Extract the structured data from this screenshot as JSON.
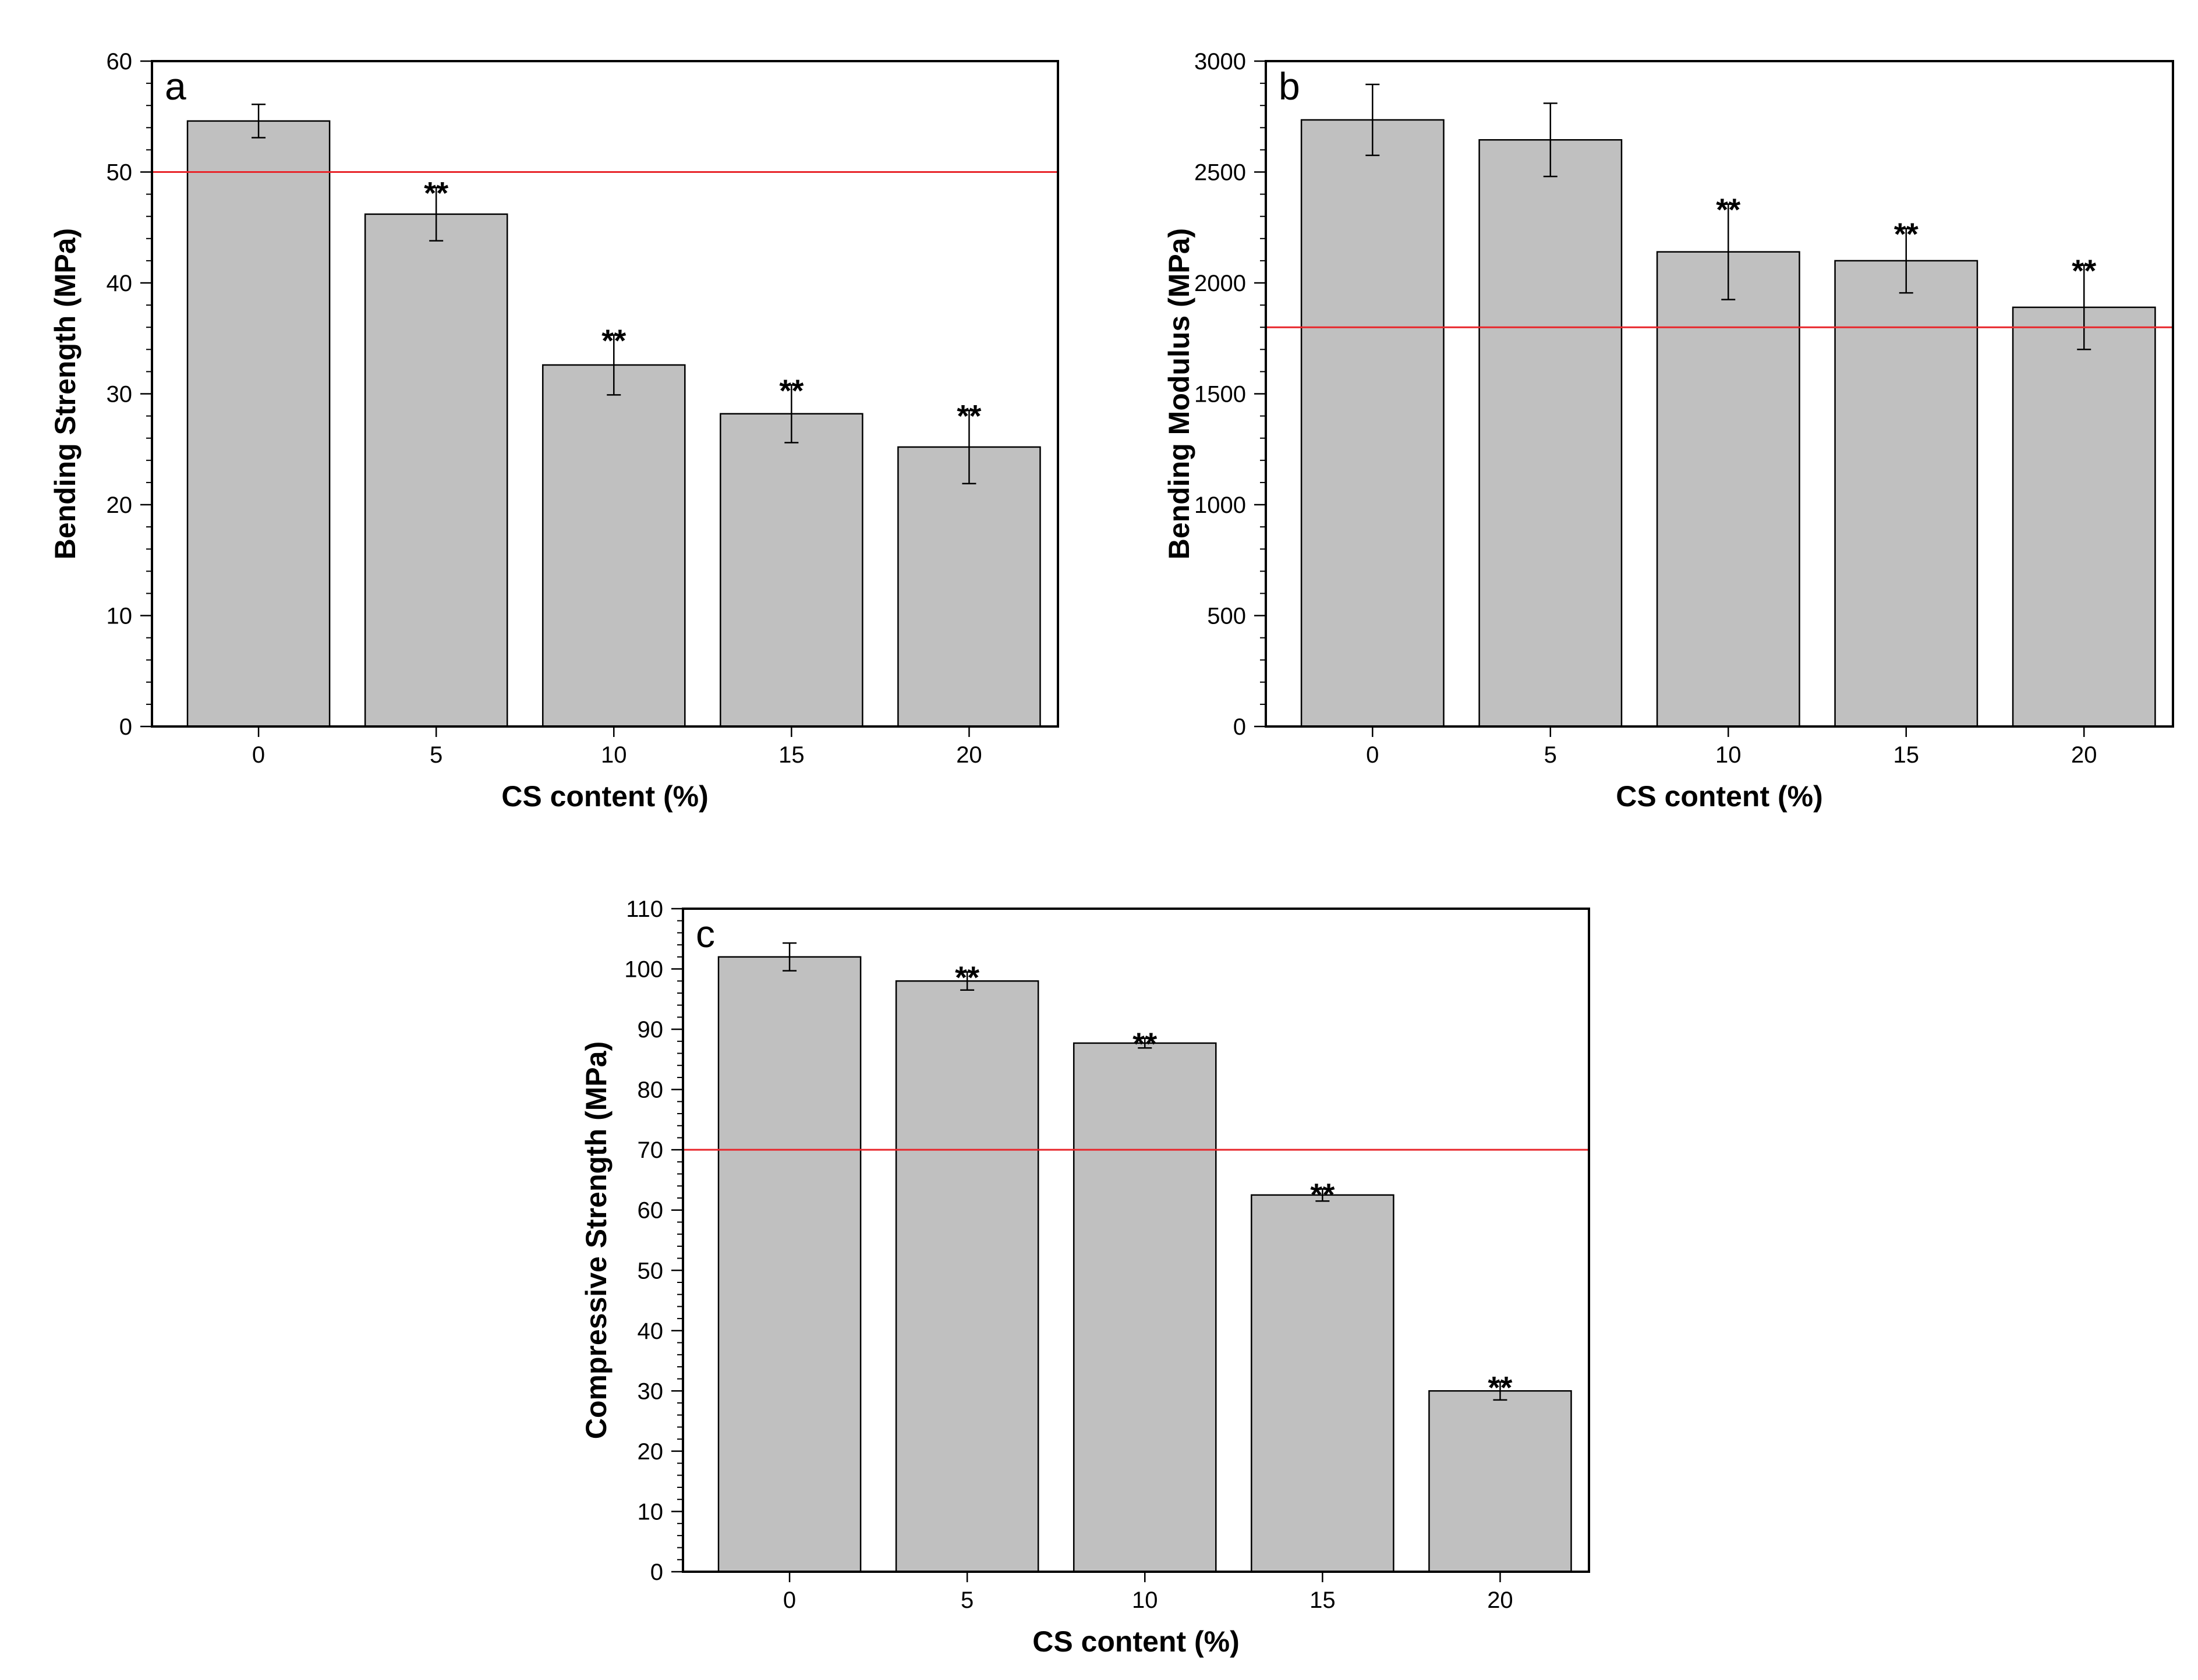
{
  "chart_data": [
    {
      "type": "bar",
      "panel_label": "a",
      "categories": [
        "0",
        "5",
        "10",
        "15",
        "20"
      ],
      "values": [
        54.6,
        46.2,
        32.6,
        28.2,
        25.2
      ],
      "errors": [
        1.5,
        2.4,
        2.7,
        2.6,
        3.3
      ],
      "significance": [
        "",
        "**",
        "**",
        "**",
        "**"
      ],
      "xlabel": "CS content (%)",
      "ylabel": "Bending Strength (MPa)",
      "ylim": [
        0,
        60
      ],
      "yticks": [
        0,
        10,
        20,
        30,
        40,
        50,
        60
      ],
      "reference_line": 50,
      "bar_color": "#c0c0c0",
      "reference_color": "#e8262b"
    },
    {
      "type": "bar",
      "panel_label": "b",
      "categories": [
        "0",
        "5",
        "10",
        "15",
        "20"
      ],
      "values": [
        2735,
        2645,
        2140,
        2100,
        1890
      ],
      "errors": [
        160,
        165,
        215,
        145,
        190
      ],
      "significance": [
        "",
        "",
        "**",
        "**",
        "**"
      ],
      "xlabel": "CS content (%)",
      "ylabel": "Bending Modulus (MPa)",
      "ylim": [
        0,
        3000
      ],
      "yticks": [
        0,
        500,
        1000,
        1500,
        2000,
        2500,
        3000
      ],
      "reference_line": 1800,
      "bar_color": "#c0c0c0",
      "reference_color": "#e8262b"
    },
    {
      "type": "bar",
      "panel_label": "c",
      "categories": [
        "0",
        "5",
        "10",
        "15",
        "20"
      ],
      "values": [
        102,
        98,
        87.7,
        62.5,
        30
      ],
      "errors": [
        2.3,
        1.5,
        0.8,
        1.0,
        1.5
      ],
      "significance": [
        "",
        "**",
        "**",
        "**",
        "**"
      ],
      "xlabel": "CS content (%)",
      "ylabel": "Compressive Strength (MPa)",
      "ylim": [
        0,
        110
      ],
      "yticks": [
        0,
        10,
        20,
        30,
        40,
        50,
        60,
        70,
        80,
        90,
        100,
        110
      ],
      "reference_line": 70,
      "bar_color": "#c0c0c0",
      "reference_color": "#e8262b"
    }
  ]
}
